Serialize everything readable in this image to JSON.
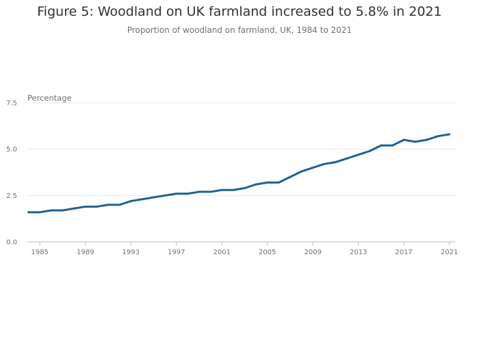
{
  "chart_data": {
    "type": "line",
    "title": "Figure 5: Woodland on UK farmland increased to 5.8% in 2021",
    "subtitle": "Proportion of woodland on farmland, UK, 1984 to 2021",
    "ylabel": "Percentage",
    "xlabel": "",
    "ylim": [
      0,
      7.5
    ],
    "xlim": [
      1984,
      2021
    ],
    "yticks": [
      "0.0",
      "2.5",
      "5.0",
      "7.5"
    ],
    "xticks": [
      "1985",
      "1989",
      "1993",
      "1997",
      "2001",
      "2005",
      "2009",
      "2013",
      "2017",
      "2021"
    ],
    "grid": true,
    "color": "#206095",
    "x": [
      1984,
      1985,
      1986,
      1987,
      1988,
      1989,
      1990,
      1991,
      1992,
      1993,
      1994,
      1995,
      1996,
      1997,
      1998,
      1999,
      2000,
      2001,
      2002,
      2003,
      2004,
      2005,
      2006,
      2007,
      2008,
      2009,
      2010,
      2011,
      2012,
      2013,
      2014,
      2015,
      2016,
      2017,
      2018,
      2019,
      2020,
      2021
    ],
    "y": [
      1.6,
      1.6,
      1.7,
      1.7,
      1.8,
      1.9,
      1.9,
      2.0,
      2.0,
      2.2,
      2.3,
      2.4,
      2.5,
      2.6,
      2.6,
      2.7,
      2.7,
      2.8,
      2.8,
      2.9,
      3.1,
      3.2,
      3.2,
      3.5,
      3.8,
      4.0,
      4.2,
      4.3,
      4.5,
      4.7,
      4.9,
      5.2,
      5.2,
      5.5,
      5.4,
      5.5,
      5.7,
      5.8
    ]
  }
}
